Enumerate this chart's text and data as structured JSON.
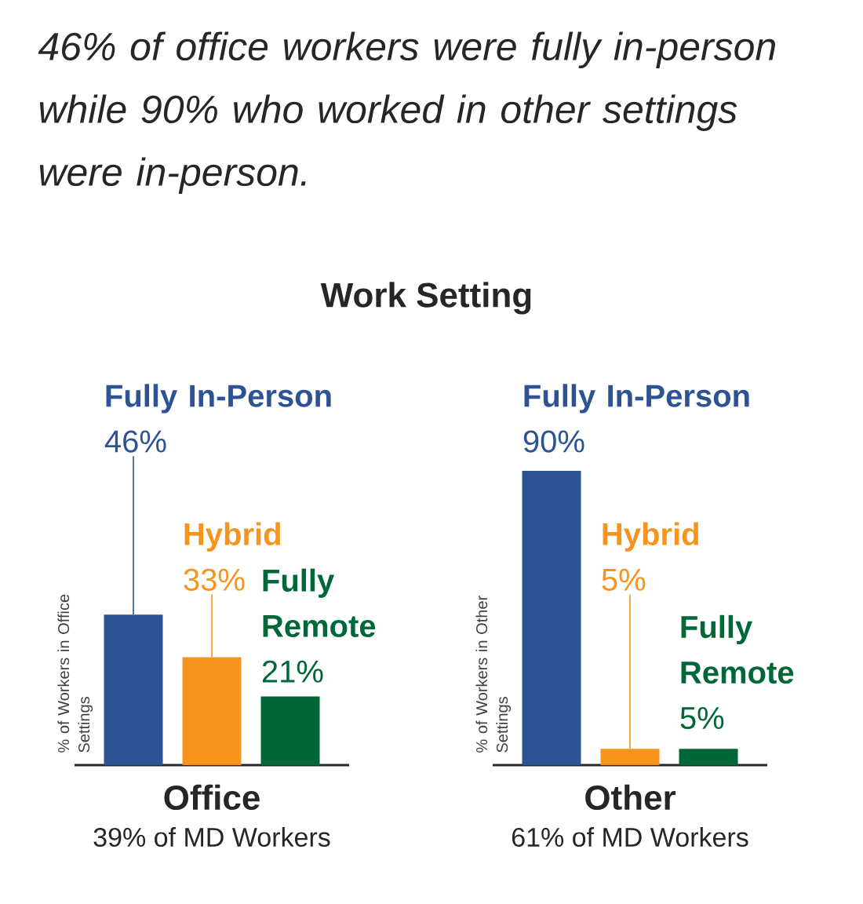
{
  "chart_data": [
    {
      "type": "bar",
      "title": "46% of office workers were fully in-person while 90% who worked in other settings were in-person.",
      "categories": [
        null
      ],
      "series": [
        {
          "name": "Fully In-Person",
          "color": "#2e5395",
          "values": [
            46
          ],
          "value_labels": [
            "46%"
          ]
        },
        {
          "name": "Hybrid",
          "color": "#f7941d",
          "values": [
            33
          ],
          "value_labels": [
            "33%"
          ]
        },
        {
          "name": "Fully Remote",
          "color": "#006838",
          "values": [
            21
          ],
          "value_labels": [
            "21%"
          ]
        }
      ],
      "xlabel": "Office",
      "ylabel": "% of Workers in Office Settings",
      "annotations": [
        "39% of MD Workers",
        "Work Setting"
      ]
    },
    {
      "type": "bar",
      "categories": [
        null
      ],
      "series": [
        {
          "name": "Fully In-Person",
          "color": "#2e5395",
          "values": [
            90
          ],
          "value_labels": [
            "90%"
          ]
        },
        {
          "name": "Hybrid",
          "color": "#f7941d",
          "values": [
            5
          ],
          "value_labels": [
            "5%"
          ]
        },
        {
          "name": "Fully Remote",
          "color": "#006838",
          "values": [
            5
          ],
          "value_labels": [
            "5%"
          ]
        }
      ],
      "xlabel": "Other",
      "ylabel": "% of Workers in Other Settings",
      "annotations": [
        "61% of MD Workers"
      ]
    }
  ]
}
